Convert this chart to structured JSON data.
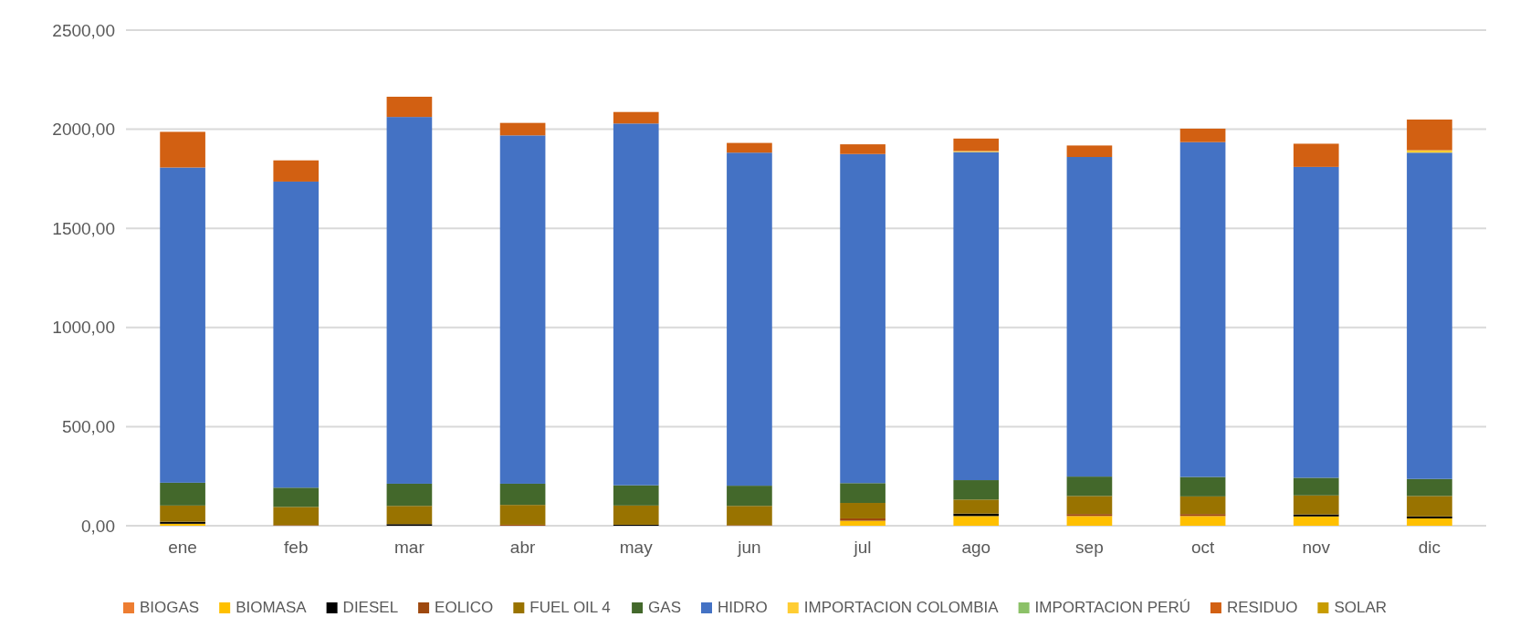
{
  "chart_data": {
    "type": "bar",
    "stacked": true,
    "categories": [
      "ene",
      "feb",
      "mar",
      "abr",
      "may",
      "jun",
      "jul",
      "ago",
      "sep",
      "oct",
      "nov",
      "dic"
    ],
    "series": [
      {
        "name": "BIOGAS",
        "color": "#ed7d31",
        "values": [
          0,
          0,
          0,
          0,
          0,
          0,
          0,
          0,
          0,
          0,
          0,
          0
        ]
      },
      {
        "name": "BIOMASA",
        "color": "#ffc000",
        "values": [
          10,
          0,
          0,
          0,
          0,
          0,
          25,
          49,
          49,
          49,
          47,
          37
        ]
      },
      {
        "name": "DIESEL",
        "color": "#000000",
        "values": [
          10,
          0,
          8,
          0,
          5,
          0,
          0,
          12,
          0,
          0,
          10,
          10
        ]
      },
      {
        "name": "EOLICO",
        "color": "#9e480e",
        "values": [
          0,
          3,
          0,
          5,
          0,
          3,
          12,
          0,
          10,
          10,
          0,
          0
        ]
      },
      {
        "name": "FUEL OIL 4",
        "color": "#997300",
        "values": [
          82,
          92,
          92,
          100,
          97,
          97,
          78,
          71,
          91,
          89,
          96,
          103
        ]
      },
      {
        "name": "GAS",
        "color": "#43682b",
        "values": [
          115,
          97,
          112,
          107,
          102,
          102,
          100,
          98,
          98,
          98,
          89,
          86
        ]
      },
      {
        "name": "HIDRO",
        "color": "#4472c4",
        "values": [
          1590,
          1544,
          1850,
          1757,
          1825,
          1680,
          1660,
          1655,
          1612,
          1689,
          1568,
          1646
        ]
      },
      {
        "name": "IMPORTACION COLOMBIA",
        "color": "#ffcd33",
        "values": [
          0,
          0,
          0,
          0,
          0,
          0,
          0,
          5,
          0,
          0,
          0,
          12
        ]
      },
      {
        "name": "IMPORTACION PERÚ",
        "color": "#8cc168",
        "values": [
          0,
          0,
          0,
          0,
          0,
          0,
          0,
          0,
          0,
          0,
          0,
          0
        ]
      },
      {
        "name": "RESIDUO",
        "color": "#d26012",
        "values": [
          180,
          107,
          102,
          63,
          58,
          49,
          49,
          63,
          58,
          68,
          117,
          155
        ]
      },
      {
        "name": "SOLAR",
        "color": "#c89c00",
        "values": [
          0,
          0,
          0,
          0,
          0,
          0,
          0,
          0,
          0,
          0,
          0,
          0
        ]
      }
    ],
    "ylim": [
      0,
      2500
    ],
    "yticks": [
      {
        "value": 0,
        "label": "0,00"
      },
      {
        "value": 500,
        "label": "500,00"
      },
      {
        "value": 1000,
        "label": "1000,00"
      },
      {
        "value": 1500,
        "label": "1500,00"
      },
      {
        "value": 2000,
        "label": "2000,00"
      },
      {
        "value": 2500,
        "label": "2500,00"
      }
    ],
    "grid": "y",
    "legend": "bottom"
  }
}
